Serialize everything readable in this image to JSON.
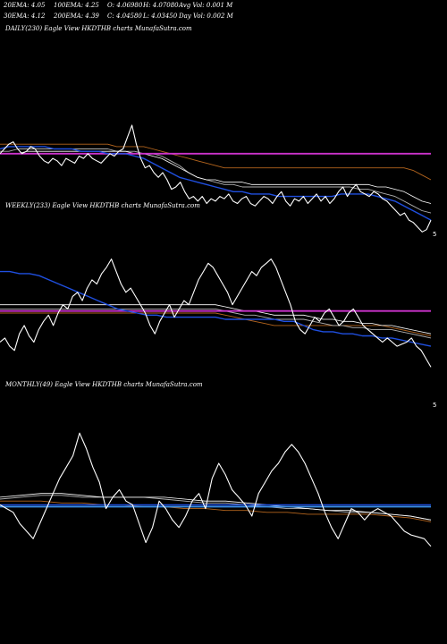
{
  "header": {
    "row1": [
      "20EMA: 4.05",
      "100EMA: 4.25",
      "O: 4.06980",
      "H: 4.07080",
      "Avg Vol: 0.001 M"
    ],
    "row2": [
      "30EMA: 4.12",
      "200EMA: 4.39",
      "C: 4.04580",
      "L: 4.03450",
      "Day Vol: 0.002 M"
    ]
  },
  "panels": {
    "daily": {
      "label": "DAILY(230) Eagle   View  HKDTHB charts MunafaSutra.com",
      "tick": "5"
    },
    "weekly": {
      "label": "WEEKLY(233) Eagle   View  HKDTHB charts MunafaSutra.com",
      "tick": "5"
    },
    "monthly": {
      "label": "MONTHLY(49) Eagle   View  HKDTHB charts MunafaSutra.com",
      "tick": "5"
    }
  },
  "colors": {
    "background": "#000000",
    "price": "#ffffff",
    "ema_short": "#1f4fe0",
    "ema_mid": "#b0b0b0",
    "ema_long": "#ffffff",
    "ema_brown": "#b5651d",
    "magenta": "#cc33cc",
    "light_blue": "#3a8fe8"
  },
  "chart_data": [
    {
      "type": "line",
      "title": "DAILY(230) Eagle   View  HKDTHB charts MunafaSutra.com",
      "series": [
        {
          "role": "price",
          "color": "#ffffff",
          "values": [
            4.38,
            4.4,
            4.42,
            4.43,
            4.4,
            4.38,
            4.39,
            4.41,
            4.4,
            4.37,
            4.35,
            4.34,
            4.36,
            4.35,
            4.33,
            4.36,
            4.35,
            4.34,
            4.37,
            4.36,
            4.38,
            4.36,
            4.35,
            4.34,
            4.36,
            4.38,
            4.37,
            4.39,
            4.4,
            4.45,
            4.5,
            4.42,
            4.36,
            4.32,
            4.33,
            4.3,
            4.28,
            4.3,
            4.27,
            4.23,
            4.24,
            4.26,
            4.22,
            4.19,
            4.2,
            4.18,
            4.2,
            4.17,
            4.19,
            4.18,
            4.2,
            4.19,
            4.21,
            4.18,
            4.17,
            4.19,
            4.2,
            4.17,
            4.16,
            4.18,
            4.2,
            4.19,
            4.17,
            4.2,
            4.22,
            4.18,
            4.16,
            4.19,
            4.18,
            4.2,
            4.17,
            4.19,
            4.21,
            4.18,
            4.2,
            4.17,
            4.19,
            4.22,
            4.24,
            4.2,
            4.23,
            4.25,
            4.22,
            4.21,
            4.2,
            4.22,
            4.21,
            4.19,
            4.18,
            4.16,
            4.14,
            4.12,
            4.13,
            4.1,
            4.09,
            4.07,
            4.05,
            4.06,
            4.1
          ]
        },
        {
          "role": "ema-blue",
          "color": "#1f4fe0",
          "values": [
            4.4,
            4.41,
            4.41,
            4.41,
            4.41,
            4.41,
            4.4,
            4.4,
            4.4,
            4.39,
            4.39,
            4.39,
            4.38,
            4.38,
            4.38,
            4.37,
            4.36,
            4.34,
            4.32,
            4.3,
            4.28,
            4.27,
            4.26,
            4.25,
            4.24,
            4.23,
            4.22,
            4.22,
            4.21,
            4.21,
            4.21,
            4.2,
            4.2,
            4.2,
            4.2,
            4.2,
            4.2,
            4.2,
            4.21,
            4.21,
            4.21,
            4.21,
            4.2,
            4.19,
            4.18,
            4.16,
            4.14,
            4.12,
            4.1
          ]
        },
        {
          "role": "ema-grey",
          "color": "#b0b0b0",
          "values": [
            4.39,
            4.39,
            4.4,
            4.4,
            4.4,
            4.4,
            4.4,
            4.4,
            4.4,
            4.4,
            4.4,
            4.4,
            4.4,
            4.39,
            4.39,
            4.39,
            4.38,
            4.38,
            4.37,
            4.35,
            4.33,
            4.3,
            4.28,
            4.27,
            4.26,
            4.25,
            4.25,
            4.24,
            4.24,
            4.24,
            4.24,
            4.24,
            4.24,
            4.24,
            4.24,
            4.24,
            4.24,
            4.24,
            4.24,
            4.24,
            4.23,
            4.23,
            4.22,
            4.21,
            4.2,
            4.18,
            4.16,
            4.14,
            4.13
          ]
        },
        {
          "role": "ema-white",
          "color": "#ffffff",
          "values": [
            4.38,
            4.38,
            4.38,
            4.39,
            4.39,
            4.39,
            4.39,
            4.39,
            4.39,
            4.39,
            4.39,
            4.39,
            4.39,
            4.39,
            4.39,
            4.38,
            4.38,
            4.37,
            4.36,
            4.34,
            4.32,
            4.3,
            4.28,
            4.27,
            4.27,
            4.26,
            4.26,
            4.26,
            4.25,
            4.25,
            4.25,
            4.25,
            4.25,
            4.25,
            4.25,
            4.25,
            4.25,
            4.25,
            4.25,
            4.25,
            4.25,
            4.25,
            4.24,
            4.24,
            4.23,
            4.22,
            4.2,
            4.18,
            4.17
          ]
        },
        {
          "role": "ema-brown",
          "color": "#b5651d",
          "values": [
            4.42,
            4.42,
            4.42,
            4.42,
            4.42,
            4.42,
            4.42,
            4.42,
            4.42,
            4.42,
            4.42,
            4.42,
            4.42,
            4.41,
            4.41,
            4.41,
            4.41,
            4.4,
            4.39,
            4.38,
            4.37,
            4.36,
            4.35,
            4.34,
            4.33,
            4.32,
            4.32,
            4.32,
            4.32,
            4.32,
            4.32,
            4.32,
            4.32,
            4.32,
            4.32,
            4.32,
            4.32,
            4.32,
            4.32,
            4.32,
            4.32,
            4.32,
            4.32,
            4.32,
            4.32,
            4.32,
            4.31,
            4.29,
            4.27
          ]
        },
        {
          "role": "magenta-flat",
          "color": "#cc33cc",
          "values": [
            4.38,
            4.38
          ]
        }
      ]
    },
    {
      "type": "line",
      "title": "WEEKLY(233) Eagle   View  HKDTHB charts MunafaSutra.com",
      "series": [
        {
          "role": "price",
          "color": "#ffffff",
          "values": [
            4.22,
            4.24,
            4.2,
            4.18,
            4.26,
            4.3,
            4.25,
            4.22,
            4.28,
            4.32,
            4.35,
            4.3,
            4.36,
            4.4,
            4.38,
            4.44,
            4.46,
            4.42,
            4.48,
            4.52,
            4.5,
            4.55,
            4.58,
            4.62,
            4.56,
            4.5,
            4.46,
            4.48,
            4.44,
            4.4,
            4.36,
            4.3,
            4.26,
            4.32,
            4.36,
            4.4,
            4.34,
            4.38,
            4.42,
            4.4,
            4.46,
            4.52,
            4.56,
            4.6,
            4.58,
            4.54,
            4.5,
            4.46,
            4.4,
            4.44,
            4.48,
            4.52,
            4.56,
            4.54,
            4.58,
            4.6,
            4.62,
            4.58,
            4.52,
            4.46,
            4.4,
            4.32,
            4.28,
            4.26,
            4.3,
            4.34,
            4.32,
            4.36,
            4.38,
            4.34,
            4.3,
            4.32,
            4.36,
            4.38,
            4.34,
            4.3,
            4.28,
            4.26,
            4.24,
            4.22,
            4.24,
            4.22,
            4.2,
            4.21,
            4.22,
            4.24,
            4.2,
            4.18,
            4.14,
            4.1
          ]
        },
        {
          "role": "ema-blue",
          "color": "#1f4fe0",
          "values": [
            4.56,
            4.56,
            4.55,
            4.55,
            4.54,
            4.52,
            4.5,
            4.48,
            4.46,
            4.44,
            4.42,
            4.4,
            4.38,
            4.37,
            4.36,
            4.35,
            4.35,
            4.34,
            4.34,
            4.34,
            4.34,
            4.34,
            4.34,
            4.33,
            4.33,
            4.33,
            4.33,
            4.33,
            4.33,
            4.32,
            4.32,
            4.3,
            4.28,
            4.27,
            4.27,
            4.26,
            4.26,
            4.25,
            4.25,
            4.24,
            4.24,
            4.23,
            4.22,
            4.21,
            4.2
          ]
        },
        {
          "role": "ema-grey",
          "color": "#b0b0b0",
          "values": [
            4.38,
            4.38,
            4.38,
            4.38,
            4.38,
            4.38,
            4.38,
            4.38,
            4.38,
            4.38,
            4.38,
            4.38,
            4.38,
            4.38,
            4.38,
            4.38,
            4.38,
            4.38,
            4.38,
            4.38,
            4.38,
            4.38,
            4.38,
            4.37,
            4.36,
            4.35,
            4.35,
            4.34,
            4.33,
            4.33,
            4.33,
            4.33,
            4.32,
            4.31,
            4.3,
            4.3,
            4.29,
            4.29,
            4.28,
            4.28,
            4.28,
            4.27,
            4.26,
            4.25,
            4.24
          ]
        },
        {
          "role": "ema-white",
          "color": "#ffffff",
          "values": [
            4.4,
            4.4,
            4.4,
            4.4,
            4.4,
            4.4,
            4.4,
            4.4,
            4.4,
            4.4,
            4.4,
            4.4,
            4.4,
            4.4,
            4.4,
            4.4,
            4.4,
            4.4,
            4.4,
            4.4,
            4.4,
            4.4,
            4.4,
            4.39,
            4.38,
            4.37,
            4.37,
            4.36,
            4.35,
            4.35,
            4.35,
            4.35,
            4.34,
            4.33,
            4.33,
            4.32,
            4.32,
            4.31,
            4.31,
            4.3,
            4.3,
            4.29,
            4.28,
            4.27,
            4.26
          ]
        },
        {
          "role": "ema-brown",
          "color": "#b5651d",
          "values": [
            4.36,
            4.36,
            4.36,
            4.36,
            4.36,
            4.36,
            4.36,
            4.36,
            4.36,
            4.36,
            4.36,
            4.36,
            4.36,
            4.36,
            4.36,
            4.36,
            4.36,
            4.36,
            4.36,
            4.36,
            4.36,
            4.36,
            4.36,
            4.35,
            4.34,
            4.33,
            4.32,
            4.31,
            4.3,
            4.3,
            4.3,
            4.3,
            4.3,
            4.3,
            4.3,
            4.3,
            4.3,
            4.3,
            4.3,
            4.3,
            4.29,
            4.28,
            4.27,
            4.26,
            4.25
          ]
        },
        {
          "role": "magenta-flat",
          "color": "#cc33cc",
          "values": [
            4.37,
            4.37
          ]
        }
      ]
    },
    {
      "type": "line",
      "title": "MONTHLY(49) Eagle   View  HKDTHB charts MunafaSutra.com",
      "series": [
        {
          "role": "price",
          "color": "#ffffff",
          "values": [
            4.38,
            4.36,
            4.34,
            4.28,
            4.24,
            4.2,
            4.28,
            4.36,
            4.44,
            4.52,
            4.58,
            4.64,
            4.76,
            4.68,
            4.58,
            4.5,
            4.36,
            4.42,
            4.46,
            4.4,
            4.38,
            4.28,
            4.18,
            4.26,
            4.4,
            4.36,
            4.3,
            4.26,
            4.32,
            4.4,
            4.44,
            4.36,
            4.52,
            4.6,
            4.54,
            4.46,
            4.42,
            4.38,
            4.32,
            4.44,
            4.5,
            4.56,
            4.6,
            4.66,
            4.7,
            4.66,
            4.6,
            4.52,
            4.44,
            4.34,
            4.26,
            4.2,
            4.28,
            4.36,
            4.34,
            4.3,
            4.34,
            4.36,
            4.34,
            4.32,
            4.28,
            4.24,
            4.22,
            4.21,
            4.2,
            4.16
          ]
        },
        {
          "role": "ema-blue",
          "color": "#1f4fe0",
          "values": [
            4.38,
            4.38
          ]
        },
        {
          "role": "ema-lightblue",
          "color": "#3a8fe8",
          "values": [
            4.37,
            4.37
          ]
        },
        {
          "role": "ema-white",
          "color": "#ffffff",
          "values": [
            4.42,
            4.43,
            4.44,
            4.44,
            4.43,
            4.42,
            4.42,
            4.42,
            4.42,
            4.41,
            4.4,
            4.4,
            4.39,
            4.38,
            4.37,
            4.36,
            4.35,
            4.35,
            4.34,
            4.33,
            4.32,
            4.3
          ]
        },
        {
          "role": "ema-grey",
          "color": "#b0b0b0",
          "values": [
            4.41,
            4.42,
            4.43,
            4.43,
            4.42,
            4.42,
            4.42,
            4.42,
            4.41,
            4.4,
            4.39,
            4.39,
            4.38,
            4.37,
            4.36,
            4.36,
            4.35,
            4.34,
            4.34,
            4.33,
            4.32,
            4.3
          ]
        },
        {
          "role": "ema-brown",
          "color": "#b5651d",
          "values": [
            4.4,
            4.4,
            4.4,
            4.39,
            4.39,
            4.38,
            4.38,
            4.37,
            4.37,
            4.36,
            4.36,
            4.35,
            4.35,
            4.34,
            4.34,
            4.33,
            4.33,
            4.33,
            4.33,
            4.32,
            4.31,
            4.29
          ]
        }
      ]
    }
  ]
}
